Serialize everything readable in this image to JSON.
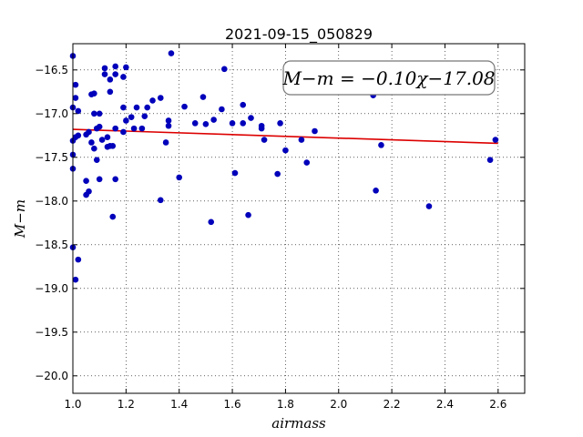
{
  "chart_data": {
    "type": "scatter",
    "title": "2021-09-15_050829",
    "xlabel": "airmass",
    "ylabel": "M−m",
    "xlim": [
      1.0,
      2.7
    ],
    "ylim": [
      -20.2,
      -16.2
    ],
    "y_inverted": true,
    "grid": true,
    "x_ticks": [
      1.0,
      1.2,
      1.4,
      1.6,
      1.8,
      2.0,
      2.2,
      2.4,
      2.6
    ],
    "x_tick_labels": [
      "1.0",
      "1.2",
      "1.4",
      "1.6",
      "1.8",
      "2.0",
      "2.2",
      "2.4",
      "2.6"
    ],
    "y_ticks": [
      -16.5,
      -17.0,
      -17.5,
      -18.0,
      -18.5,
      -19.0,
      -19.5,
      -20.0
    ],
    "y_tick_labels": [
      "−16.5",
      "−17.0",
      "−17.5",
      "−18.0",
      "−18.5",
      "−19.0",
      "−19.5",
      "−20.0"
    ],
    "annotation": "M−m = −0.10χ−17.08",
    "annotation_position": "top-right",
    "fit": {
      "slope": -0.1,
      "intercept": -17.08,
      "x_range": [
        1.0,
        2.6
      ],
      "color": "#dd0000"
    },
    "point_color": "#0000bb",
    "points": [
      [
        1.0,
        -16.34
      ],
      [
        1.0,
        -16.93
      ],
      [
        1.0,
        -17.31
      ],
      [
        1.0,
        -17.47
      ],
      [
        1.0,
        -17.63
      ],
      [
        1.0,
        -18.53
      ],
      [
        1.01,
        -16.67
      ],
      [
        1.01,
        -16.82
      ],
      [
        1.01,
        -17.27
      ],
      [
        1.01,
        -18.9
      ],
      [
        1.02,
        -16.97
      ],
      [
        1.02,
        -17.25
      ],
      [
        1.02,
        -18.67
      ],
      [
        1.05,
        -17.24
      ],
      [
        1.05,
        -17.93
      ],
      [
        1.05,
        -17.77
      ],
      [
        1.06,
        -17.89
      ],
      [
        1.06,
        -17.21
      ],
      [
        1.07,
        -17.33
      ],
      [
        1.07,
        -16.78
      ],
      [
        1.08,
        -16.77
      ],
      [
        1.08,
        -17.0
      ],
      [
        1.08,
        -17.4
      ],
      [
        1.09,
        -17.17
      ],
      [
        1.09,
        -17.53
      ],
      [
        1.1,
        -17.0
      ],
      [
        1.1,
        -17.15
      ],
      [
        1.1,
        -17.75
      ],
      [
        1.11,
        -17.3
      ],
      [
        1.12,
        -16.48
      ],
      [
        1.12,
        -16.55
      ],
      [
        1.13,
        -17.27
      ],
      [
        1.13,
        -17.38
      ],
      [
        1.14,
        -16.61
      ],
      [
        1.14,
        -16.75
      ],
      [
        1.14,
        -17.37
      ],
      [
        1.15,
        -17.37
      ],
      [
        1.15,
        -18.18
      ],
      [
        1.16,
        -16.46
      ],
      [
        1.16,
        -16.55
      ],
      [
        1.16,
        -17.17
      ],
      [
        1.16,
        -17.75
      ],
      [
        1.19,
        -16.58
      ],
      [
        1.19,
        -16.93
      ],
      [
        1.19,
        -17.21
      ],
      [
        1.2,
        -16.47
      ],
      [
        1.2,
        -17.08
      ],
      [
        1.22,
        -17.04
      ],
      [
        1.23,
        -17.17
      ],
      [
        1.24,
        -16.93
      ],
      [
        1.26,
        -17.17
      ],
      [
        1.27,
        -17.03
      ],
      [
        1.28,
        -16.93
      ],
      [
        1.3,
        -16.85
      ],
      [
        1.33,
        -17.99
      ],
      [
        1.33,
        -16.82
      ],
      [
        1.35,
        -17.33
      ],
      [
        1.36,
        -17.08
      ],
      [
        1.36,
        -17.14
      ],
      [
        1.37,
        -16.31
      ],
      [
        1.4,
        -17.73
      ],
      [
        1.42,
        -16.92
      ],
      [
        1.46,
        -17.11
      ],
      [
        1.49,
        -16.81
      ],
      [
        1.5,
        -17.12
      ],
      [
        1.52,
        -18.24
      ],
      [
        1.53,
        -17.07
      ],
      [
        1.56,
        -16.95
      ],
      [
        1.57,
        -16.49
      ],
      [
        1.6,
        -17.11
      ],
      [
        1.61,
        -17.68
      ],
      [
        1.64,
        -17.11
      ],
      [
        1.64,
        -16.9
      ],
      [
        1.66,
        -18.16
      ],
      [
        1.67,
        -17.05
      ],
      [
        1.71,
        -17.14
      ],
      [
        1.71,
        -17.17
      ],
      [
        1.72,
        -17.3
      ],
      [
        1.77,
        -17.69
      ],
      [
        1.78,
        -17.11
      ],
      [
        1.8,
        -17.42
      ],
      [
        1.86,
        -17.3
      ],
      [
        1.88,
        -17.56
      ],
      [
        1.91,
        -17.2
      ],
      [
        2.13,
        -16.79
      ],
      [
        2.14,
        -17.88
      ],
      [
        2.16,
        -17.36
      ],
      [
        2.34,
        -18.06
      ],
      [
        2.57,
        -17.53
      ],
      [
        2.59,
        -17.3
      ]
    ]
  }
}
